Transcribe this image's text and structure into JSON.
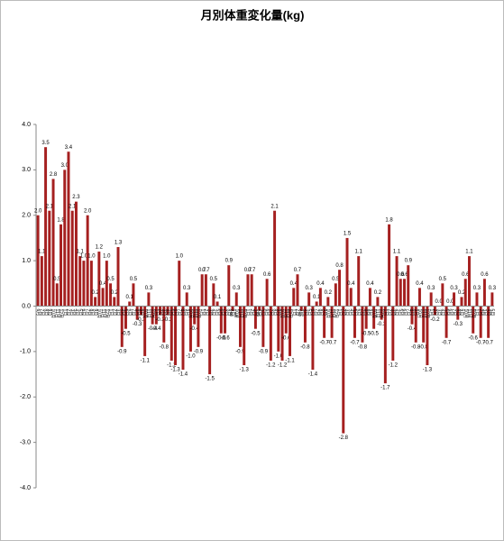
{
  "chart_data": {
    "type": "bar",
    "title": "月別体重変化量(kg)",
    "categories": [
      "6月",
      "7月",
      "8月",
      "9月",
      "10月",
      "11月",
      "12月",
      "1月",
      "2月",
      "3月",
      "4月",
      "5月",
      "6月",
      "7月",
      "8月",
      "9月",
      "10月",
      "11月",
      "12月",
      "1月",
      "2月",
      "3月",
      "4月",
      "5月",
      "6月",
      "7月",
      "8月",
      "9月",
      "10月",
      "11月",
      "12月",
      "1月",
      "2月",
      "3月",
      "4月",
      "5月",
      "6月",
      "7月",
      "8月",
      "9月",
      "10月",
      "11月",
      "12月",
      "1月",
      "2月",
      "3月",
      "4月",
      "5月",
      "6月",
      "7月",
      "8月",
      "9月",
      "10月",
      "11月",
      "12月",
      "1月",
      "2月",
      "3月",
      "4月",
      "5月",
      "6月",
      "7月",
      "8月",
      "9月",
      "10月",
      "11月",
      "12月",
      "1月",
      "2月",
      "3月",
      "4月",
      "5月",
      "6月",
      "7月",
      "8月",
      "9月",
      "10月",
      "11月",
      "12月",
      "1月",
      "2月",
      "3月",
      "4月",
      "5月",
      "6月",
      "7月",
      "8月",
      "9月",
      "10月",
      "11月",
      "12月",
      "1月",
      "2月",
      "3月",
      "4月",
      "5月",
      "6月",
      "7月",
      "8月",
      "9月",
      "10月",
      "11月",
      "12月",
      "1月",
      "2月",
      "3月",
      "4月",
      "5月",
      "6月",
      "7月",
      "8月",
      "9月",
      "10月",
      "11月",
      "12月",
      "1月",
      "2月",
      "3月",
      "4月",
      "5月"
    ],
    "values": [
      2.0,
      1.1,
      3.5,
      2.1,
      2.8,
      0.5,
      1.8,
      3.0,
      3.4,
      2.1,
      2.3,
      1.1,
      1.0,
      2.0,
      1.0,
      0.2,
      1.2,
      0.4,
      1.0,
      0.5,
      0.2,
      1.3,
      -0.9,
      -0.5,
      0.1,
      0.5,
      -0.3,
      -0.2,
      -1.1,
      0.3,
      -0.4,
      -0.4,
      -0.2,
      -0.8,
      -0.2,
      -1.2,
      -1.3,
      1.0,
      -1.4,
      0.3,
      -1.0,
      -0.4,
      -0.9,
      0.7,
      0.7,
      -1.5,
      0.5,
      0.1,
      -0.6,
      -0.6,
      0.9,
      -0.1,
      0.3,
      -0.9,
      -1.3,
      0.7,
      0.7,
      -0.5,
      -0.1,
      -0.9,
      0.6,
      -1.2,
      2.1,
      -1.0,
      -1.2,
      -0.6,
      -1.1,
      0.4,
      0.7,
      -0.1,
      -0.8,
      0.3,
      -1.4,
      0.1,
      0.4,
      -0.7,
      0.2,
      -0.7,
      0.5,
      0.8,
      -2.8,
      1.5,
      0.4,
      -0.7,
      1.1,
      -0.8,
      -0.5,
      0.4,
      -0.5,
      0.2,
      -0.3,
      -1.7,
      1.8,
      -1.2,
      1.1,
      0.6,
      0.6,
      0.9,
      -0.4,
      -0.8,
      0.4,
      -0.8,
      -1.3,
      0.3,
      -0.2,
      0,
      0.5,
      -0.7,
      0,
      0.3,
      -0.3,
      0.2,
      0.6,
      1.1,
      -0.6,
      0.3,
      -0.7,
      0.6,
      -0.7,
      0.3
    ],
    "value_labels": [
      "2.0",
      "1.1",
      "3.5",
      "2.1",
      "2.8",
      "0.5",
      "1.8",
      "3.0",
      "3.4",
      "2.1",
      "2.3",
      "1.1",
      "1.0",
      "2.0",
      "1.0",
      "0.2",
      "1.2",
      "0.4",
      "1.0",
      "0.5",
      "0.2",
      "1.3",
      "-0.9",
      "-0.5",
      "0.1",
      "0.5",
      "-0.3",
      "-0.2",
      "-1.1",
      "0.3",
      "-0.4",
      "-0.4",
      "-0.2",
      "-0.8",
      "-0.2",
      "-1.2",
      "-1.3",
      "1.0",
      "-1.4",
      "0.3",
      "-1.0",
      "-0.4",
      "-0.9",
      "0.7",
      "0.7",
      "-1.5",
      "0.5",
      "0.1",
      "-0.6",
      "-0.6",
      "0.9",
      "-0.1",
      "0.3",
      "-0.9",
      "-1.3",
      "0.7",
      "0.7",
      "-0.5",
      "-0.1",
      "-0.9",
      "0.6",
      "-1.2",
      "2.1",
      "-1.0",
      "-1.2",
      "-0.6",
      "-1.1",
      "0.4",
      "0.7",
      "-0.1",
      "-0.8",
      "0.3",
      "-1.4",
      "0.1",
      "0.4",
      "-0.7",
      "0.2",
      "-0.7",
      "0.5",
      "0.8",
      "-2.8",
      "1.5",
      "0.4",
      "-0.7",
      "1.1",
      "-0.8",
      "-0.5",
      "0.4",
      "-0.5",
      "0.2",
      "-0.3",
      "-1.7",
      "1.8",
      "-1.2",
      "1.1",
      "0.6",
      "0.6",
      "0.9",
      "-0.4",
      "-0.8",
      "0.4",
      "-0.8",
      "-1.3",
      "0.3",
      "-0.2",
      "0.0",
      "0.5",
      "-0.7",
      "0.0",
      "0.3",
      "-0.3",
      "0.2",
      "0.6",
      "1.1",
      "-0.6",
      "0.3",
      "-0.7",
      "0.6",
      "-0.7",
      "0.3"
    ],
    "color": "#a52020",
    "ylim": [
      -4,
      4
    ],
    "yticks": [
      {
        "value": 4,
        "label": "4.0"
      },
      {
        "value": 3,
        "label": "3.0"
      },
      {
        "value": 2,
        "label": "2.0"
      },
      {
        "value": 1,
        "label": "1.0"
      },
      {
        "value": 0,
        "label": "0.0"
      },
      {
        "value": -1,
        "label": "-1.0"
      },
      {
        "value": -2,
        "label": "-2.0"
      },
      {
        "value": -3,
        "label": "-3.0"
      },
      {
        "value": -4,
        "label": "-4.0"
      }
    ],
    "grid": false
  }
}
